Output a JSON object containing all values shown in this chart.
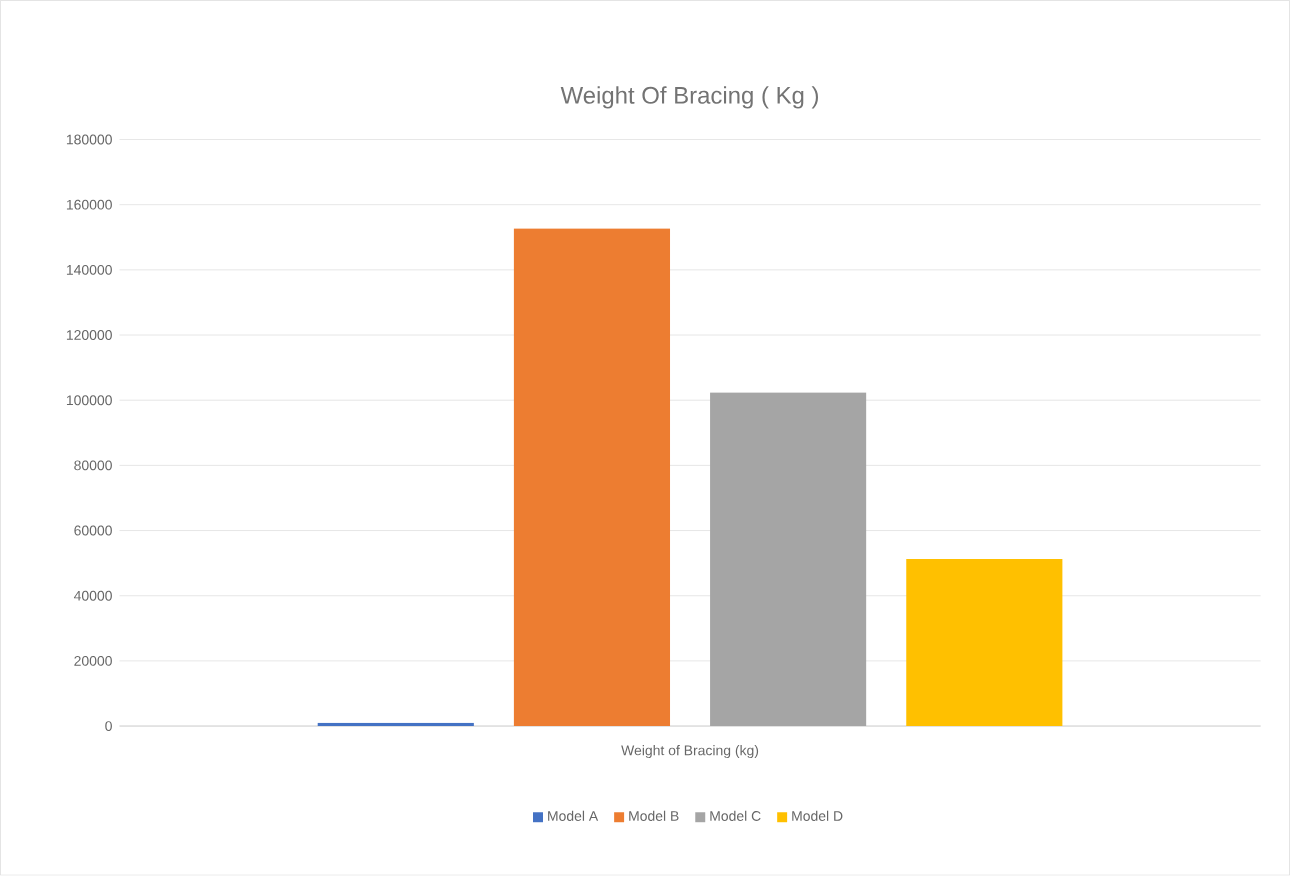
{
  "chart_data": {
    "type": "bar",
    "title": "Weight Of Bracing ( Kg )",
    "categories": [
      "Weight of Bracing (kg)"
    ],
    "series": [
      {
        "name": "Model A",
        "color": "#4472c4",
        "values": [
          1000
        ]
      },
      {
        "name": "Model B",
        "color": "#ed7d31",
        "values": [
          152700
        ]
      },
      {
        "name": "Model C",
        "color": "#a5a5a5",
        "values": [
          102400
        ]
      },
      {
        "name": "Model D",
        "color": "#ffc000",
        "values": [
          51300
        ]
      }
    ],
    "ylim": [
      0,
      180000
    ],
    "yticks": [
      0,
      20000,
      40000,
      60000,
      80000,
      100000,
      120000,
      140000,
      160000,
      180000
    ],
    "grid": "y",
    "legend": "bottom"
  }
}
